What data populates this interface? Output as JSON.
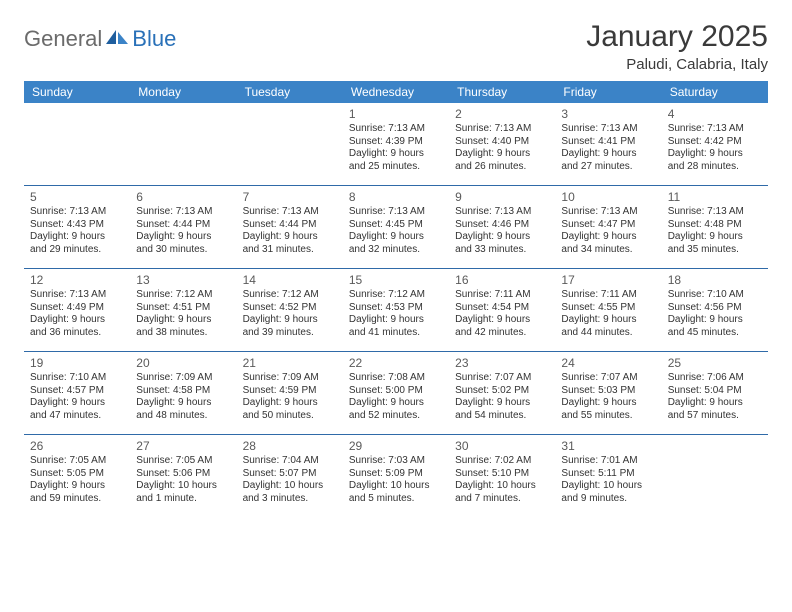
{
  "brand": {
    "general": "General",
    "blue": "Blue"
  },
  "title": "January 2025",
  "location": "Paludi, Calabria, Italy",
  "colors": {
    "header_bg": "#3b83c7",
    "header_text": "#ffffff",
    "rule": "#2f6aa8",
    "logo_gray": "#6b6b6b",
    "logo_blue": "#2a71b8",
    "text": "#333333",
    "background": "#ffffff"
  },
  "typography": {
    "title_fontsize": 30,
    "location_fontsize": 15,
    "dayheader_fontsize": 12,
    "daynum_fontsize": 12,
    "body_fontsize": 10
  },
  "day_names": [
    "Sunday",
    "Monday",
    "Tuesday",
    "Wednesday",
    "Thursday",
    "Friday",
    "Saturday"
  ],
  "weeks": [
    [
      {},
      {},
      {},
      {
        "n": "1",
        "sr": "Sunrise: 7:13 AM",
        "ss": "Sunset: 4:39 PM",
        "d1": "Daylight: 9 hours",
        "d2": "and 25 minutes."
      },
      {
        "n": "2",
        "sr": "Sunrise: 7:13 AM",
        "ss": "Sunset: 4:40 PM",
        "d1": "Daylight: 9 hours",
        "d2": "and 26 minutes."
      },
      {
        "n": "3",
        "sr": "Sunrise: 7:13 AM",
        "ss": "Sunset: 4:41 PM",
        "d1": "Daylight: 9 hours",
        "d2": "and 27 minutes."
      },
      {
        "n": "4",
        "sr": "Sunrise: 7:13 AM",
        "ss": "Sunset: 4:42 PM",
        "d1": "Daylight: 9 hours",
        "d2": "and 28 minutes."
      }
    ],
    [
      {
        "n": "5",
        "sr": "Sunrise: 7:13 AM",
        "ss": "Sunset: 4:43 PM",
        "d1": "Daylight: 9 hours",
        "d2": "and 29 minutes."
      },
      {
        "n": "6",
        "sr": "Sunrise: 7:13 AM",
        "ss": "Sunset: 4:44 PM",
        "d1": "Daylight: 9 hours",
        "d2": "and 30 minutes."
      },
      {
        "n": "7",
        "sr": "Sunrise: 7:13 AM",
        "ss": "Sunset: 4:44 PM",
        "d1": "Daylight: 9 hours",
        "d2": "and 31 minutes."
      },
      {
        "n": "8",
        "sr": "Sunrise: 7:13 AM",
        "ss": "Sunset: 4:45 PM",
        "d1": "Daylight: 9 hours",
        "d2": "and 32 minutes."
      },
      {
        "n": "9",
        "sr": "Sunrise: 7:13 AM",
        "ss": "Sunset: 4:46 PM",
        "d1": "Daylight: 9 hours",
        "d2": "and 33 minutes."
      },
      {
        "n": "10",
        "sr": "Sunrise: 7:13 AM",
        "ss": "Sunset: 4:47 PM",
        "d1": "Daylight: 9 hours",
        "d2": "and 34 minutes."
      },
      {
        "n": "11",
        "sr": "Sunrise: 7:13 AM",
        "ss": "Sunset: 4:48 PM",
        "d1": "Daylight: 9 hours",
        "d2": "and 35 minutes."
      }
    ],
    [
      {
        "n": "12",
        "sr": "Sunrise: 7:13 AM",
        "ss": "Sunset: 4:49 PM",
        "d1": "Daylight: 9 hours",
        "d2": "and 36 minutes."
      },
      {
        "n": "13",
        "sr": "Sunrise: 7:12 AM",
        "ss": "Sunset: 4:51 PM",
        "d1": "Daylight: 9 hours",
        "d2": "and 38 minutes."
      },
      {
        "n": "14",
        "sr": "Sunrise: 7:12 AM",
        "ss": "Sunset: 4:52 PM",
        "d1": "Daylight: 9 hours",
        "d2": "and 39 minutes."
      },
      {
        "n": "15",
        "sr": "Sunrise: 7:12 AM",
        "ss": "Sunset: 4:53 PM",
        "d1": "Daylight: 9 hours",
        "d2": "and 41 minutes."
      },
      {
        "n": "16",
        "sr": "Sunrise: 7:11 AM",
        "ss": "Sunset: 4:54 PM",
        "d1": "Daylight: 9 hours",
        "d2": "and 42 minutes."
      },
      {
        "n": "17",
        "sr": "Sunrise: 7:11 AM",
        "ss": "Sunset: 4:55 PM",
        "d1": "Daylight: 9 hours",
        "d2": "and 44 minutes."
      },
      {
        "n": "18",
        "sr": "Sunrise: 7:10 AM",
        "ss": "Sunset: 4:56 PM",
        "d1": "Daylight: 9 hours",
        "d2": "and 45 minutes."
      }
    ],
    [
      {
        "n": "19",
        "sr": "Sunrise: 7:10 AM",
        "ss": "Sunset: 4:57 PM",
        "d1": "Daylight: 9 hours",
        "d2": "and 47 minutes."
      },
      {
        "n": "20",
        "sr": "Sunrise: 7:09 AM",
        "ss": "Sunset: 4:58 PM",
        "d1": "Daylight: 9 hours",
        "d2": "and 48 minutes."
      },
      {
        "n": "21",
        "sr": "Sunrise: 7:09 AM",
        "ss": "Sunset: 4:59 PM",
        "d1": "Daylight: 9 hours",
        "d2": "and 50 minutes."
      },
      {
        "n": "22",
        "sr": "Sunrise: 7:08 AM",
        "ss": "Sunset: 5:00 PM",
        "d1": "Daylight: 9 hours",
        "d2": "and 52 minutes."
      },
      {
        "n": "23",
        "sr": "Sunrise: 7:07 AM",
        "ss": "Sunset: 5:02 PM",
        "d1": "Daylight: 9 hours",
        "d2": "and 54 minutes."
      },
      {
        "n": "24",
        "sr": "Sunrise: 7:07 AM",
        "ss": "Sunset: 5:03 PM",
        "d1": "Daylight: 9 hours",
        "d2": "and 55 minutes."
      },
      {
        "n": "25",
        "sr": "Sunrise: 7:06 AM",
        "ss": "Sunset: 5:04 PM",
        "d1": "Daylight: 9 hours",
        "d2": "and 57 minutes."
      }
    ],
    [
      {
        "n": "26",
        "sr": "Sunrise: 7:05 AM",
        "ss": "Sunset: 5:05 PM",
        "d1": "Daylight: 9 hours",
        "d2": "and 59 minutes."
      },
      {
        "n": "27",
        "sr": "Sunrise: 7:05 AM",
        "ss": "Sunset: 5:06 PM",
        "d1": "Daylight: 10 hours",
        "d2": "and 1 minute."
      },
      {
        "n": "28",
        "sr": "Sunrise: 7:04 AM",
        "ss": "Sunset: 5:07 PM",
        "d1": "Daylight: 10 hours",
        "d2": "and 3 minutes."
      },
      {
        "n": "29",
        "sr": "Sunrise: 7:03 AM",
        "ss": "Sunset: 5:09 PM",
        "d1": "Daylight: 10 hours",
        "d2": "and 5 minutes."
      },
      {
        "n": "30",
        "sr": "Sunrise: 7:02 AM",
        "ss": "Sunset: 5:10 PM",
        "d1": "Daylight: 10 hours",
        "d2": "and 7 minutes."
      },
      {
        "n": "31",
        "sr": "Sunrise: 7:01 AM",
        "ss": "Sunset: 5:11 PM",
        "d1": "Daylight: 10 hours",
        "d2": "and 9 minutes."
      },
      {}
    ]
  ]
}
